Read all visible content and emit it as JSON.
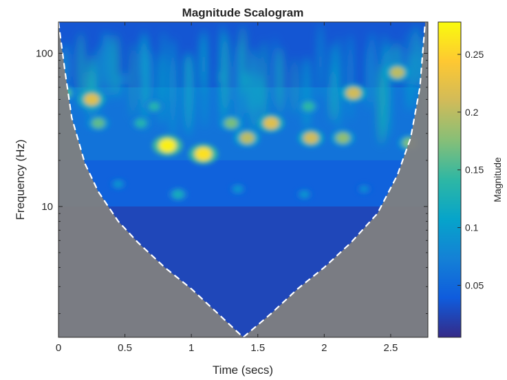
{
  "chart_data": {
    "type": "heatmap",
    "title": "Magnitude Scalogram",
    "xlabel": "Time (secs)",
    "ylabel": "Frequency (Hz)",
    "xlim": [
      0,
      2.78
    ],
    "ylim": [
      1.4,
      160
    ],
    "y_scale": "log",
    "x_ticks": [
      {
        "value": 0,
        "label": "0"
      },
      {
        "value": 0.5,
        "label": "0.5"
      },
      {
        "value": 1,
        "label": "1"
      },
      {
        "value": 1.5,
        "label": "1.5"
      },
      {
        "value": 2,
        "label": "2"
      },
      {
        "value": 2.5,
        "label": "2.5"
      }
    ],
    "y_ticks": [
      {
        "value": 10,
        "label": "10"
      },
      {
        "value": 100,
        "label": "100"
      }
    ],
    "colorbar": {
      "label": "Magnitude",
      "colormap": "parula",
      "range": [
        0.005,
        0.278
      ],
      "ticks": [
        {
          "value": 0.05,
          "label": "0.05"
        },
        {
          "value": 0.1,
          "label": "0.1"
        },
        {
          "value": 0.15,
          "label": "0.15"
        },
        {
          "value": 0.2,
          "label": "0.2"
        },
        {
          "value": 0.25,
          "label": "0.25"
        }
      ],
      "stops": [
        "#352a87",
        "#0f5cdd",
        "#1481d6",
        "#06a4ca",
        "#2eb7a4",
        "#87bf77",
        "#d1bb59",
        "#fec832",
        "#f9fb0e"
      ]
    },
    "cone_of_influence": {
      "style": "white dashed",
      "shade_color": "#808080",
      "time": [
        0.0,
        0.05,
        0.1,
        0.2,
        0.3,
        0.45,
        0.6,
        0.8,
        1.0,
        1.2,
        1.39,
        1.6,
        1.8,
        2.0,
        2.2,
        2.4,
        2.55,
        2.65,
        2.72,
        2.76
      ],
      "frequency": [
        160,
        75,
        38,
        19,
        12.5,
        8,
        5.8,
        4.0,
        2.9,
        2.0,
        1.4,
        2.0,
        2.9,
        4.0,
        5.8,
        9,
        16,
        28,
        60,
        160
      ]
    },
    "hotspots": [
      {
        "time": 0.82,
        "frequency": 25,
        "magnitude": 0.27
      },
      {
        "time": 1.09,
        "frequency": 22,
        "magnitude": 0.26
      },
      {
        "time": 0.25,
        "frequency": 50,
        "magnitude": 0.22
      },
      {
        "time": 0.05,
        "frequency": 55,
        "magnitude": 0.15
      },
      {
        "time": 0.3,
        "frequency": 35,
        "magnitude": 0.16
      },
      {
        "time": 0.62,
        "frequency": 35,
        "magnitude": 0.13
      },
      {
        "time": 0.72,
        "frequency": 45,
        "magnitude": 0.13
      },
      {
        "time": 1.3,
        "frequency": 35,
        "magnitude": 0.17
      },
      {
        "time": 1.42,
        "frequency": 28,
        "magnitude": 0.2
      },
      {
        "time": 1.6,
        "frequency": 35,
        "magnitude": 0.22
      },
      {
        "time": 1.9,
        "frequency": 28,
        "magnitude": 0.21
      },
      {
        "time": 1.88,
        "frequency": 45,
        "magnitude": 0.14
      },
      {
        "time": 2.14,
        "frequency": 28,
        "magnitude": 0.18
      },
      {
        "time": 2.22,
        "frequency": 55,
        "magnitude": 0.21
      },
      {
        "time": 2.55,
        "frequency": 75,
        "magnitude": 0.2
      },
      {
        "time": 2.64,
        "frequency": 26,
        "magnitude": 0.17
      },
      {
        "time": 0.45,
        "frequency": 14,
        "magnitude": 0.09
      },
      {
        "time": 0.9,
        "frequency": 12,
        "magnitude": 0.12
      },
      {
        "time": 1.35,
        "frequency": 13,
        "magnitude": 0.09
      },
      {
        "time": 1.85,
        "frequency": 12,
        "magnitude": 0.09
      },
      {
        "time": 2.3,
        "frequency": 13,
        "magnitude": 0.08
      }
    ]
  }
}
